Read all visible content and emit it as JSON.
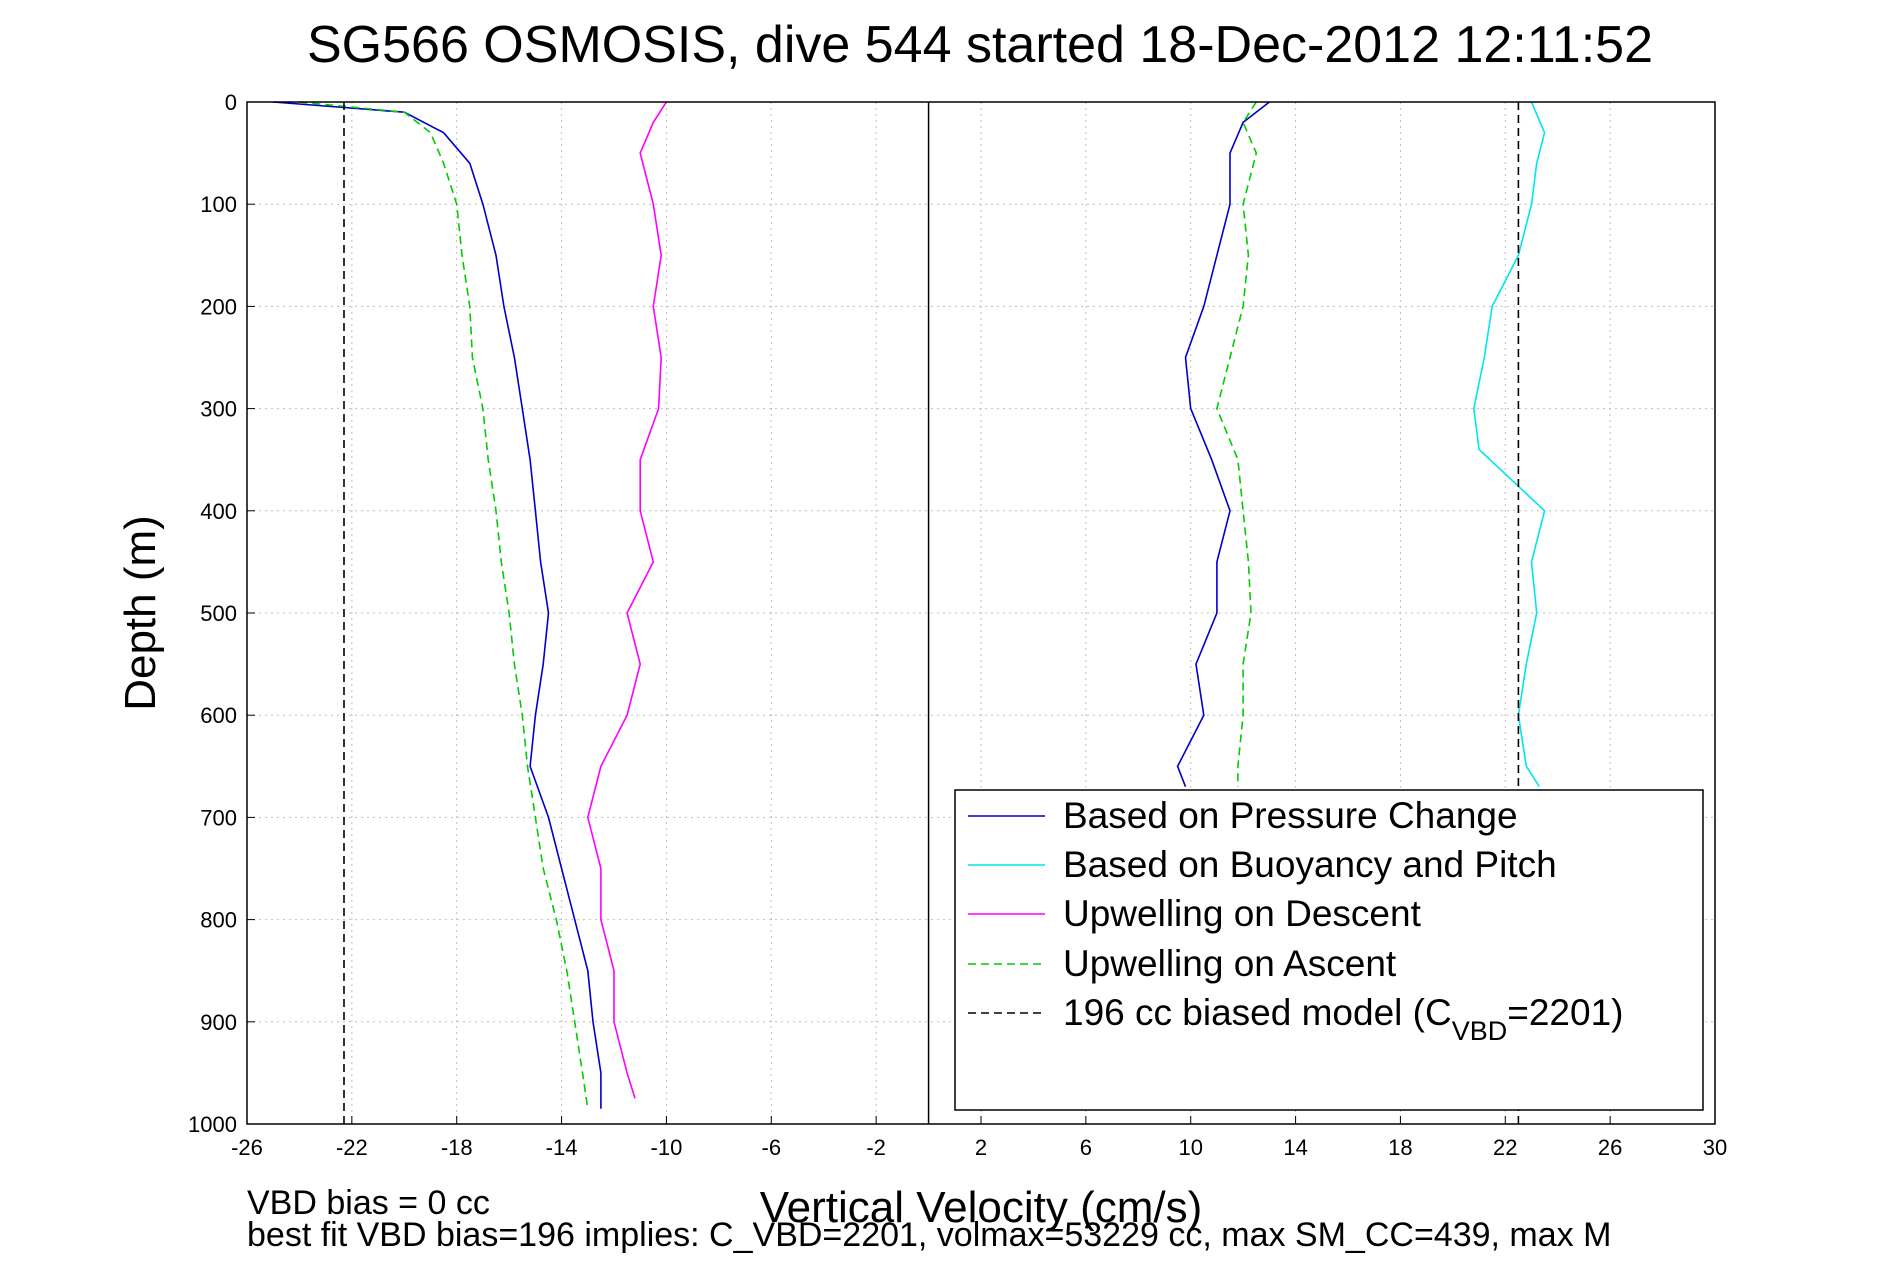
{
  "chart_data": {
    "type": "line",
    "title": "SG566 OSMOSIS, dive 544 started 18-Dec-2012 12:11:52",
    "xlabel": "Vertical Velocity (cm/s)",
    "ylabel": "Depth (m)",
    "xlim": [
      -26,
      30
    ],
    "ylim": [
      0,
      1000
    ],
    "y_reversed": true,
    "grid": true,
    "legend_position": "bottom-right",
    "x_ticks": [
      "-26",
      "-22",
      "-18",
      "-14",
      "-10",
      "-6",
      "-2",
      "2",
      "6",
      "10",
      "14",
      "18",
      "22",
      "26",
      "30"
    ],
    "y_ticks": [
      "0",
      "100",
      "200",
      "300",
      "400",
      "500",
      "600",
      "700",
      "800",
      "900",
      "1000"
    ],
    "series": [
      {
        "name": "Based on Pressure Change",
        "color": "#0000cc",
        "style": "solid",
        "segments": [
          {
            "depth": [
              0,
              10,
              30,
              60,
              100,
              150,
              200,
              250,
              300,
              350,
              400,
              450,
              500,
              550,
              600,
              650,
              700,
              750,
              800,
              850,
              900,
              950,
              985
            ],
            "velocity": [
              -25,
              -20,
              -18.5,
              -17.5,
              -17,
              -16.5,
              -16.2,
              -15.8,
              -15.5,
              -15.2,
              -15,
              -14.8,
              -14.5,
              -14.7,
              -15,
              -15.2,
              -14.5,
              -14,
              -13.5,
              -13,
              -12.8,
              -12.5,
              -12.5
            ]
          },
          {
            "depth": [
              0,
              20,
              50,
              100,
              150,
              200,
              250,
              300,
              350,
              400,
              450,
              500,
              550,
              600,
              650,
              670
            ],
            "velocity": [
              13,
              12,
              11.5,
              11.5,
              11,
              10.5,
              9.8,
              10,
              10.8,
              11.5,
              11,
              11,
              10.2,
              10.5,
              9.5,
              9.8
            ]
          }
        ]
      },
      {
        "name": "Based on Buoyancy and Pitch",
        "color": "#00e5ee",
        "style": "solid",
        "segments": [
          {
            "depth": [
              0,
              30,
              60,
              100,
              150,
              200,
              250,
              300,
              340,
              400,
              450,
              500,
              550,
              600,
              650,
              670
            ],
            "velocity": [
              23,
              23.5,
              23.2,
              23,
              22.5,
              21.5,
              21.2,
              20.8,
              21,
              23.5,
              23,
              23.2,
              22.8,
              22.5,
              22.8,
              23.3
            ]
          }
        ]
      },
      {
        "name": "Upwelling on Descent",
        "color": "#ff00ff",
        "style": "solid",
        "segments": [
          {
            "depth": [
              0,
              20,
              50,
              100,
              150,
              200,
              250,
              300,
              350,
              400,
              450,
              500,
              550,
              600,
              650,
              700,
              750,
              800,
              850,
              900,
              950,
              975
            ],
            "velocity": [
              -10,
              -10.5,
              -11,
              -10.5,
              -10.2,
              -10.5,
              -10.2,
              -10.3,
              -11,
              -11,
              -10.5,
              -11.5,
              -11,
              -11.5,
              -12.5,
              -13,
              -12.5,
              -12.5,
              -12,
              -12,
              -11.5,
              -11.2
            ]
          }
        ]
      },
      {
        "name": "Upwelling on Ascent",
        "color": "#00cc00",
        "style": "dashed",
        "segments": [
          {
            "depth": [
              0,
              10,
              30,
              60,
              100,
              150,
              200,
              250,
              300,
              350,
              400,
              450,
              500,
              550,
              600,
              650,
              700,
              750,
              800,
              850,
              900,
              950,
              985
            ],
            "velocity": [
              -24,
              -20,
              -19,
              -18.5,
              -18,
              -17.8,
              -17.5,
              -17.4,
              -17,
              -16.8,
              -16.5,
              -16.3,
              -16,
              -15.8,
              -15.5,
              -15.3,
              -15,
              -14.7,
              -14.2,
              -13.8,
              -13.5,
              -13.2,
              -13
            ]
          },
          {
            "depth": [
              0,
              20,
              50,
              100,
              150,
              200,
              250,
              300,
              350,
              400,
              450,
              500,
              550,
              600,
              650,
              670
            ],
            "velocity": [
              12.5,
              12,
              12.5,
              12,
              12.2,
              12,
              11.5,
              11,
              11.8,
              12,
              12.2,
              12.3,
              12,
              12,
              11.8,
              11.8
            ]
          }
        ]
      },
      {
        "name": "196 cc biased model (C",
        "color": "#000000",
        "style": "dashed",
        "segments": [
          {
            "depth": [
              0,
              1000
            ],
            "velocity": [
              -22.3,
              -22.3
            ]
          },
          {
            "depth": [
              0,
              1000
            ],
            "velocity": [
              22.5,
              22.5
            ]
          }
        ]
      }
    ]
  },
  "legend": {
    "label_sub": "VBD",
    "label_tail": "=2201)"
  },
  "notes": {
    "line1": "VBD bias = 0 cc",
    "line2": "best fit VBD bias=196 implies: C_VBD=2201, volmax=53229 cc, max SM_CC=439, max M"
  }
}
